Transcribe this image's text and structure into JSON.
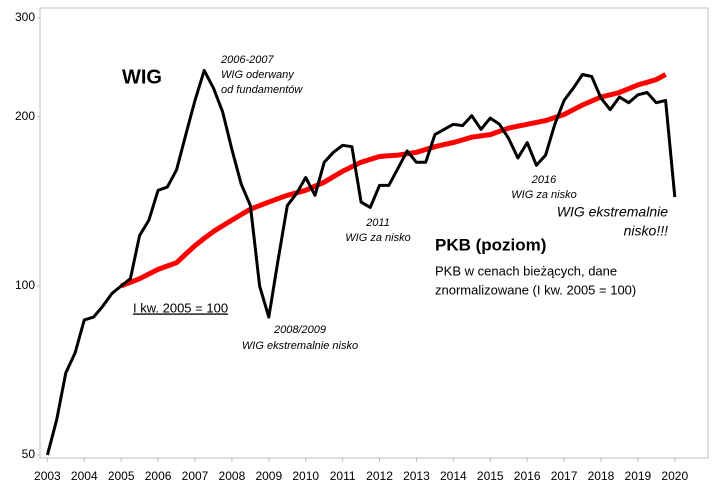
{
  "chart_data": {
    "type": "line",
    "log_scale": true,
    "x": [
      2003,
      2003.25,
      2003.5,
      2003.75,
      2004,
      2004.25,
      2004.5,
      2004.75,
      2005,
      2005.25,
      2005.5,
      2005.75,
      2006,
      2006.25,
      2006.5,
      2006.75,
      2007,
      2007.25,
      2007.5,
      2007.75,
      2008,
      2008.25,
      2008.5,
      2008.75,
      2009,
      2009.25,
      2009.5,
      2009.75,
      2010,
      2010.25,
      2010.5,
      2010.75,
      2011,
      2011.25,
      2011.5,
      2011.75,
      2012,
      2012.25,
      2012.5,
      2012.75,
      2013,
      2013.25,
      2013.5,
      2013.75,
      2014,
      2014.25,
      2014.5,
      2014.75,
      2015,
      2015.25,
      2015.5,
      2015.75,
      2016,
      2016.25,
      2016.5,
      2016.75,
      2017,
      2017.25,
      2017.5,
      2017.75,
      2018,
      2018.25,
      2018.5,
      2018.75,
      2019,
      2019.25,
      2019.5,
      2019.75,
      2020
    ],
    "series": [
      {
        "name": "WIG",
        "color": "#000000",
        "values": [
          50,
          57.7,
          70,
          76,
          87,
          88,
          92,
          97,
          100,
          103,
          123,
          131,
          148,
          150,
          161,
          186,
          214,
          242,
          225,
          204,
          175,
          152,
          139,
          100,
          88,
          111,
          139,
          146,
          156,
          145,
          166,
          173,
          178,
          177,
          141,
          138,
          151,
          151,
          162,
          174,
          166,
          166,
          186,
          190,
          194,
          193,
          201,
          190,
          199,
          194,
          183,
          169,
          180,
          164,
          171,
          194,
          214,
          225,
          238,
          236,
          216,
          206,
          217,
          212,
          219,
          221,
          212,
          214,
          144
        ]
      },
      {
        "name": "PKB (poziom)",
        "color": "#ff0000",
        "values": [
          null,
          null,
          null,
          null,
          null,
          null,
          null,
          null,
          100,
          101.5,
          103,
          105,
          107,
          108.5,
          110,
          114,
          118,
          121.5,
          125,
          128,
          131,
          134,
          137,
          139,
          141,
          143,
          145,
          146.5,
          148,
          150.5,
          153,
          156.5,
          160,
          163,
          166,
          168,
          170,
          170.5,
          171,
          172,
          173,
          175,
          177,
          178.5,
          180,
          182,
          184,
          185,
          186,
          188.5,
          191,
          192.5,
          194,
          195.5,
          197,
          199.5,
          202,
          206,
          210,
          213.5,
          217,
          219,
          221,
          224.5,
          228,
          230.5,
          233,
          238,
          null
        ]
      }
    ],
    "xlim": [
      2002.8,
      2020.9
    ],
    "xticks": [
      2003,
      2004,
      2005,
      2006,
      2007,
      2008,
      2009,
      2010,
      2011,
      2012,
      2013,
      2014,
      2015,
      2016,
      2017,
      2018,
      2019,
      2020
    ],
    "ylim": [
      50,
      300
    ],
    "yticks": [
      50,
      100,
      200,
      300
    ],
    "annotations": [
      {
        "lines": [
          "2006-2007",
          "WIG oderwany",
          "od fundamentów"
        ]
      },
      {
        "lines": [
          "2008/2009",
          "WIG ekstremalnie nisko"
        ]
      },
      {
        "lines": [
          "2011",
          "WIG za nisko"
        ]
      },
      {
        "lines": [
          "2016",
          "WIG za nisko"
        ]
      },
      {
        "lines": [
          "WIG ekstremalnie",
          "nisko!!!"
        ]
      },
      {
        "lines": [
          "PKB w cenach bieżących, dane",
          "znormalizowane (I kw. 2005 = 100)"
        ]
      },
      {
        "lines": [
          "I kw. 2005 = 100"
        ]
      }
    ]
  }
}
